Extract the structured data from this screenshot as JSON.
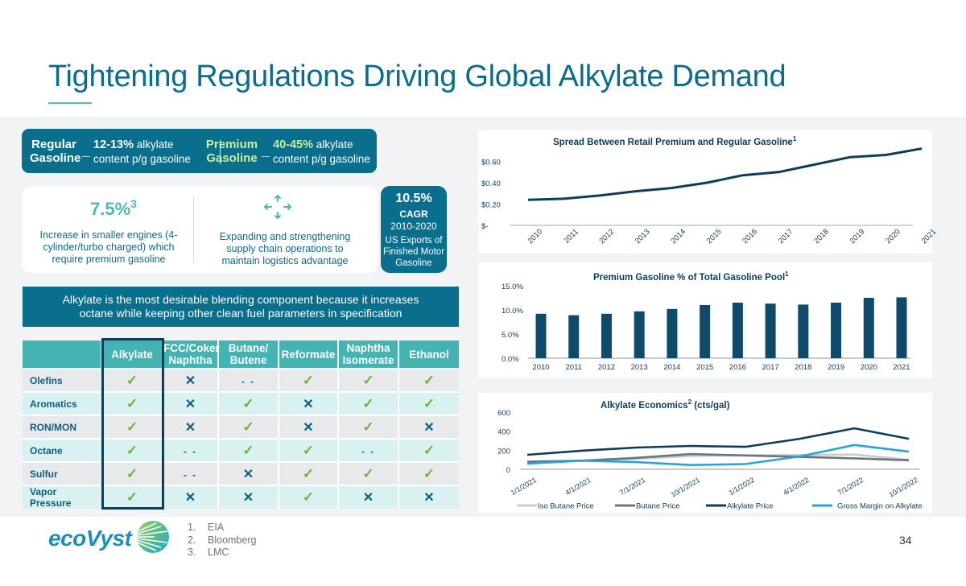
{
  "header": {
    "title": "Tightening Regulations Driving Global Alkylate Demand"
  },
  "banner": {
    "regular_label_1": "Regular",
    "regular_label_2": "Gasoline",
    "regular_pct": "12-13%",
    "regular_text_1": "alkylate",
    "regular_text_2": "content p/g gasoline",
    "premium_label_1": "Premium",
    "premium_label_2": "Gasoline",
    "premium_pct": "40-45%",
    "premium_text_1": "alkylate",
    "premium_text_2": "content p/g gasoline"
  },
  "stat_card": {
    "value": "7.5%",
    "value_sup": "3",
    "left_text": [
      "Increase in smaller engines (4-",
      "cylinder/turbo charged) which",
      "require premium gasoline"
    ],
    "right_icon": "move-arrows-icon",
    "right_text": [
      "Expanding and strengthening",
      "supply chain operations to",
      "maintain logistics advantage"
    ]
  },
  "cagr_card": {
    "value": "10.5%",
    "label": "CAGR",
    "period": "2010-2020",
    "desc": [
      "US Exports of",
      "Finished Motor",
      "Gasoline"
    ]
  },
  "blend_banner": {
    "line1": "Alkylate is the most desirable blending component because it increases",
    "line2": "octane while keeping other clean fuel parameters in specification"
  },
  "comparison_table": {
    "columns": [
      {
        "l1": "Alkylate",
        "l2": ""
      },
      {
        "l1": "FCC/Coker",
        "l2": "Naphtha"
      },
      {
        "l1": "Butane/",
        "l2": "Butene"
      },
      {
        "l1": "Reformate",
        "l2": ""
      },
      {
        "l1": "Naphtha",
        "l2": "Isomerate"
      },
      {
        "l1": "Ethanol",
        "l2": ""
      }
    ],
    "rows": [
      {
        "label": "Olefins",
        "cells": [
          "check",
          "x",
          "na",
          "check",
          "check",
          "check"
        ]
      },
      {
        "label": "Aromatics",
        "cells": [
          "check",
          "x",
          "check",
          "x",
          "check",
          "check"
        ]
      },
      {
        "label": "RON/MON",
        "cells": [
          "check",
          "x",
          "check",
          "x",
          "check",
          "x"
        ]
      },
      {
        "label": "Octane",
        "cells": [
          "check",
          "na",
          "check",
          "check",
          "na",
          "check"
        ]
      },
      {
        "label": "Sulfur",
        "cells": [
          "check",
          "na",
          "x",
          "check",
          "check",
          "check"
        ]
      },
      {
        "label": "Vapor Pressure",
        "cells": [
          "check",
          "x",
          "x",
          "check",
          "x",
          "x"
        ]
      }
    ],
    "symbols": {
      "check": "✓",
      "x": "✕",
      "na": "- -"
    }
  },
  "colors": {
    "brand_teal": "#0a6f8d",
    "accent_teal": "#44b4b2",
    "navy": "#0e3d5c",
    "check_green": "#6ab53a",
    "premium_label": "#c9ef9a"
  },
  "chart_data": [
    {
      "type": "line",
      "title": "Spread Between Retail Premium and Regular Gasoline",
      "title_sup": "1",
      "x": [
        "2010",
        "2011",
        "2012",
        "2013",
        "2014",
        "2015",
        "2016",
        "2017",
        "2018",
        "2019",
        "2020",
        "2021"
      ],
      "series": [
        {
          "name": "Spread",
          "values": [
            0.24,
            0.25,
            0.28,
            0.32,
            0.35,
            0.4,
            0.47,
            0.5,
            0.57,
            0.64,
            0.66,
            0.72
          ],
          "color": "#0e3d5c"
        }
      ],
      "yticks": [
        0,
        0.2,
        0.4,
        0.6
      ],
      "ytick_labels": [
        "$-",
        "$0.20",
        "$0.40",
        "$0.60"
      ],
      "ylim": [
        0,
        0.75
      ],
      "xlabel": "",
      "ylabel": "",
      "grid": false
    },
    {
      "type": "bar",
      "title": "Premium Gasoline % of Total Gasoline Pool",
      "title_sup": "1",
      "categories": [
        "2010",
        "2011",
        "2012",
        "2013",
        "2014",
        "2015",
        "2016",
        "2017",
        "2018",
        "2019",
        "2020",
        "2021"
      ],
      "values": [
        9.2,
        8.9,
        9.2,
        9.7,
        10.2,
        11.0,
        11.5,
        11.3,
        11.1,
        11.5,
        12.5,
        12.6
      ],
      "yticks": [
        0,
        5,
        10,
        15
      ],
      "ytick_labels": [
        "0.0%",
        "5.0%",
        "10.0%",
        "15.0%"
      ],
      "ylim": [
        0,
        15
      ],
      "color": "#0e4a6b",
      "xlabel": "",
      "ylabel": "",
      "grid": false
    },
    {
      "type": "line",
      "title": "Alkylate Economics",
      "title_sup": "2",
      "title_suffix": " (cts/gal)",
      "x": [
        "1/1/2021",
        "4/1/2021",
        "7/1/2021",
        "10/1/2021",
        "1/1/2022",
        "4/1/2022",
        "7/1/2022",
        "10/1/2022"
      ],
      "series": [
        {
          "name": "Iso Butane Price",
          "values": [
            75,
            90,
            110,
            140,
            145,
            150,
            155,
            100
          ],
          "color": "#c8ccd0"
        },
        {
          "name": "Butane Price",
          "values": [
            80,
            90,
            120,
            160,
            145,
            130,
            115,
            95
          ],
          "color": "#6c757d"
        },
        {
          "name": "Alkylate Price",
          "values": [
            152,
            195,
            228,
            245,
            236,
            320,
            430,
            320
          ],
          "color": "#0e3d5c"
        },
        {
          "name": "Gross Margin on Alkylate",
          "values": [
            60,
            90,
            75,
            45,
            55,
            135,
            255,
            185
          ],
          "color": "#2aa3d8"
        }
      ],
      "yticks": [
        0,
        200,
        400,
        600
      ],
      "ytick_labels": [
        "0",
        "200",
        "400",
        "600"
      ],
      "ylim": [
        0,
        600
      ],
      "legend": "bottom",
      "xlabel": "",
      "ylabel": "",
      "grid": false
    }
  ],
  "footer": {
    "logo_text": "ecoVyst",
    "footnotes": [
      {
        "num": "1.",
        "text": "EIA"
      },
      {
        "num": "2.",
        "text": "Bloomberg"
      },
      {
        "num": "3.",
        "text": "LMC"
      }
    ],
    "page_number": "34"
  }
}
